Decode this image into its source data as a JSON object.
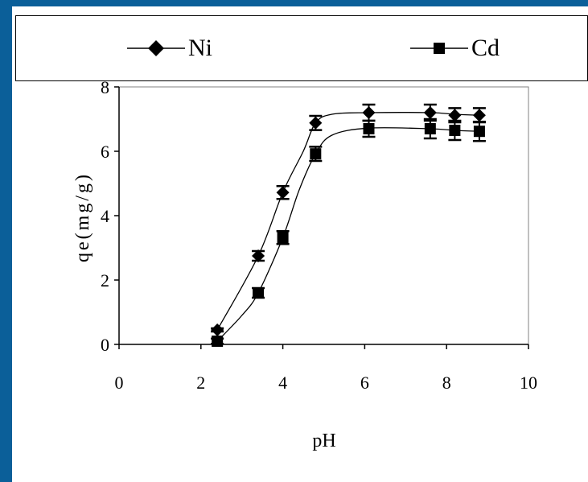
{
  "chart_data": {
    "type": "scatter",
    "title": "",
    "xlabel": "pH",
    "ylabel": "qe(mg/g)",
    "xlim": [
      0,
      10
    ],
    "ylim": [
      0,
      8
    ],
    "xticks": [
      "0",
      "2",
      "4",
      "6",
      "8",
      "10"
    ],
    "yticks": [
      "0",
      "2",
      "4",
      "6",
      "8"
    ],
    "grid": false,
    "legend_position": "top",
    "series": [
      {
        "name": "Ni",
        "marker": "diamond",
        "x": [
          2.4,
          3.4,
          4.0,
          4.8,
          6.1,
          7.6,
          8.2,
          8.8
        ],
        "y": [
          0.45,
          2.75,
          4.72,
          6.88,
          7.2,
          7.2,
          7.12,
          7.12
        ],
        "error": [
          0.05,
          0.15,
          0.2,
          0.22,
          0.25,
          0.25,
          0.22,
          0.22
        ],
        "trend_x": [
          2.4,
          3.4,
          4.0,
          4.5,
          4.8,
          5.2,
          6.1,
          7.6,
          8.2,
          8.8
        ],
        "trend_y": [
          0.45,
          2.75,
          4.72,
          6.0,
          6.88,
          7.15,
          7.2,
          7.2,
          7.15,
          7.12
        ]
      },
      {
        "name": "Cd",
        "marker": "square",
        "x": [
          2.4,
          3.4,
          4.0,
          4.8,
          6.1,
          7.6,
          8.2,
          8.8
        ],
        "y": [
          0.1,
          1.6,
          3.32,
          5.92,
          6.7,
          6.7,
          6.65,
          6.62
        ],
        "error": [
          0.08,
          0.15,
          0.2,
          0.22,
          0.25,
          0.3,
          0.3,
          0.3
        ],
        "trend_x": [
          2.4,
          3.0,
          3.4,
          4.0,
          4.4,
          4.8,
          5.2,
          6.1,
          7.6,
          8.2,
          8.8
        ],
        "trend_y": [
          0.1,
          0.9,
          1.6,
          3.32,
          4.8,
          5.92,
          6.5,
          6.72,
          6.7,
          6.65,
          6.62
        ]
      }
    ]
  }
}
